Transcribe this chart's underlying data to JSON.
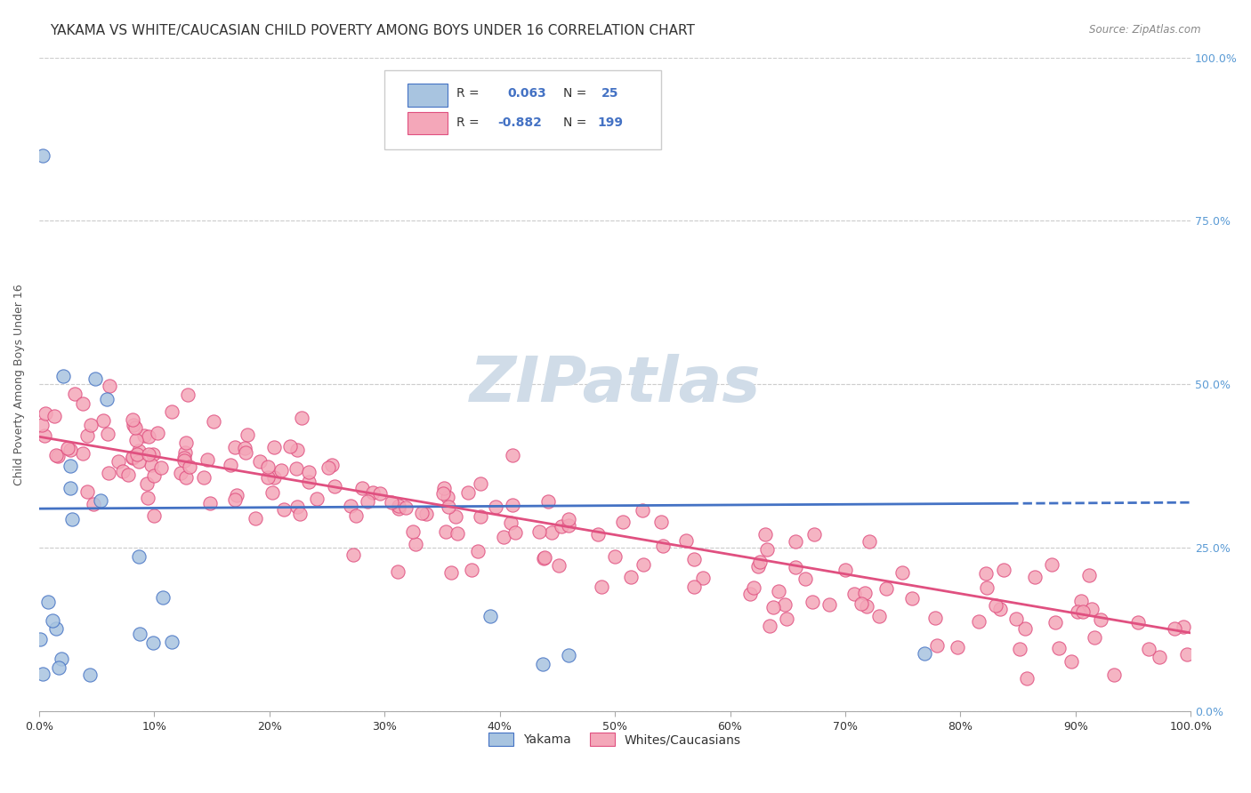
{
  "title": "YAKAMA VS WHITE/CAUCASIAN CHILD POVERTY AMONG BOYS UNDER 16 CORRELATION CHART",
  "source": "Source: ZipAtlas.com",
  "ylabel": "Child Poverty Among Boys Under 16",
  "xlabel": "",
  "yakama_R": 0.063,
  "yakama_N": 25,
  "white_R": -0.882,
  "white_N": 199,
  "yakama_color": "#a8c4e0",
  "yakama_line_color": "#4472c4",
  "white_color": "#f4a7b9",
  "white_line_color": "#e05080",
  "background_color": "#ffffff",
  "grid_color": "#cccccc",
  "watermark_color": "#d0dce8",
  "right_tick_color": "#5b9bd5",
  "title_fontsize": 11,
  "axis_label_fontsize": 9,
  "tick_fontsize": 9,
  "legend_fontsize": 10,
  "xlim": [
    0,
    1
  ],
  "ylim": [
    0,
    1
  ]
}
